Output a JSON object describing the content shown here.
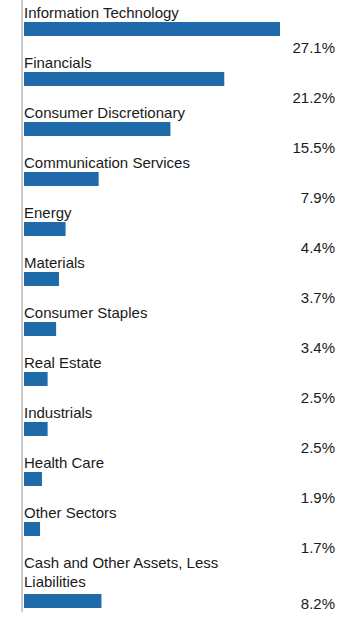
{
  "chart_data": {
    "type": "bar",
    "orientation": "horizontal",
    "categories": [
      "Information Technology",
      "Financials",
      "Consumer Discretionary",
      "Communication Services",
      "Energy",
      "Materials",
      "Consumer Staples",
      "Real Estate",
      "Industrials",
      "Health Care",
      "Other Sectors",
      "Cash and Other Assets, Less Liabilities"
    ],
    "values": [
      27.1,
      21.2,
      15.5,
      7.9,
      4.4,
      3.7,
      3.4,
      2.5,
      2.5,
      1.9,
      1.7,
      8.2
    ],
    "value_labels": [
      "27.1%",
      "21.2%",
      "15.5%",
      "7.9%",
      "4.4%",
      "3.7%",
      "3.4%",
      "2.5%",
      "2.5%",
      "1.9%",
      "1.7%",
      "8.2%"
    ],
    "color": "#1f6aa8",
    "xlim": [
      0,
      27.1
    ],
    "data_labels": true,
    "tick_labels": false,
    "grid": false
  }
}
